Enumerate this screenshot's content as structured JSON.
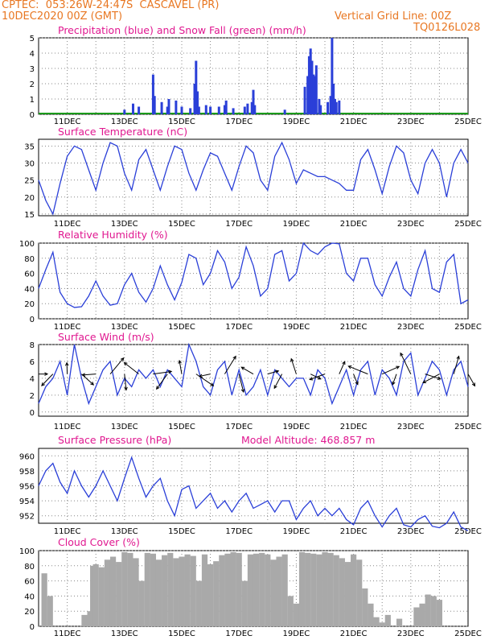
{
  "header": {
    "line1": "CPTEC:  053:26W-24:47S  CASCAVEL (PR)",
    "line2_left": "10DEC2020 00Z (GMT)",
    "line2_right": "Vertical Grid Line: 00Z",
    "line3_right": "TQ0126L028"
  },
  "colors": {
    "header": "#e87722",
    "title": "#e01890",
    "line": "#2a3fd8",
    "snow": "#1a9a1a",
    "cloud": "#a9a9a9"
  },
  "x_ticks": [
    "11DEC",
    "13DEC",
    "15DEC",
    "17DEC",
    "19DEC",
    "21DEC",
    "23DEC",
    "25DEC"
  ],
  "chart_data": [
    {
      "type": "bar",
      "title": "Precipitation (blue) and Snow Fall (green) (mm/h)",
      "ylim": [
        0,
        5
      ],
      "yticks": [
        0,
        1,
        2,
        3,
        4,
        5
      ],
      "x_unit": "days since 10DEC2020 00Z",
      "series": [
        {
          "name": "Precipitation",
          "x": [
            3.0,
            3.3,
            3.5,
            4.0,
            4.05,
            4.3,
            4.5,
            4.55,
            4.8,
            5.0,
            5.3,
            5.45,
            5.5,
            5.55,
            5.6,
            5.85,
            6.0,
            6.3,
            6.5,
            6.55,
            6.8,
            7.2,
            7.3,
            7.45,
            7.5,
            7.55,
            8.6,
            9.3,
            9.4,
            9.45,
            9.5,
            9.55,
            9.6,
            9.65,
            9.7,
            9.8,
            9.85,
            10.1,
            10.2,
            10.25,
            10.3,
            10.35,
            10.4,
            10.5
          ],
          "values": [
            0.3,
            0.7,
            0.5,
            2.6,
            1.2,
            0.8,
            0.5,
            1.0,
            0.9,
            0.5,
            0.4,
            2.0,
            3.5,
            1.5,
            0.5,
            0.6,
            0.5,
            0.5,
            0.6,
            0.9,
            0.4,
            0.5,
            0.7,
            0.8,
            1.6,
            0.6,
            0.3,
            1.8,
            2.5,
            3.8,
            4.3,
            3.5,
            2.6,
            2.5,
            3.2,
            1.0,
            0.6,
            0.8,
            1.2,
            5.0,
            2.0,
            1.0,
            0.8,
            0.9
          ]
        },
        {
          "name": "Snow Fall",
          "x": [],
          "values": []
        }
      ]
    },
    {
      "type": "line",
      "title": "Surface Temperature (nC)",
      "ylim": [
        14.5,
        37
      ],
      "yticks": [
        15,
        20,
        25,
        30,
        35
      ],
      "x": [
        0,
        0.25,
        0.5,
        0.75,
        1.0,
        1.25,
        1.5,
        1.75,
        2.0,
        2.25,
        2.5,
        2.75,
        3.0,
        3.25,
        3.5,
        3.75,
        4.0,
        4.25,
        4.5,
        4.75,
        5.0,
        5.25,
        5.5,
        5.75,
        6.0,
        6.25,
        6.5,
        6.75,
        7.0,
        7.25,
        7.5,
        7.75,
        8.0,
        8.25,
        8.5,
        8.75,
        9.0,
        9.25,
        9.5,
        9.75,
        10.0,
        10.25,
        10.5,
        10.75,
        11.0,
        11.25,
        11.5,
        11.75,
        12.0,
        12.25,
        12.5,
        12.75,
        13.0,
        13.25,
        13.5,
        13.75,
        14.0,
        14.25,
        14.5,
        14.75,
        15.0
      ],
      "values": [
        25,
        19,
        15,
        24,
        32,
        35,
        34,
        28,
        22,
        30,
        36,
        35,
        27,
        22,
        31,
        34,
        28,
        22,
        29,
        35,
        34,
        27,
        22,
        28,
        33,
        32,
        27,
        22,
        29,
        35,
        33,
        25,
        22,
        32,
        36,
        31,
        24,
        28,
        27,
        26,
        26,
        25,
        24,
        22,
        22,
        31,
        34,
        28,
        21,
        29,
        35,
        33,
        25,
        21,
        30,
        34,
        30,
        20,
        30,
        34,
        30
      ]
    },
    {
      "type": "line",
      "title": "Relative Humidity (%)",
      "ylim": [
        0,
        100
      ],
      "yticks": [
        0,
        20,
        40,
        60,
        80,
        100
      ],
      "x": [
        0,
        0.25,
        0.5,
        0.75,
        1.0,
        1.25,
        1.5,
        1.75,
        2.0,
        2.25,
        2.5,
        2.75,
        3.0,
        3.25,
        3.5,
        3.75,
        4.0,
        4.25,
        4.5,
        4.75,
        5.0,
        5.25,
        5.5,
        5.75,
        6.0,
        6.25,
        6.5,
        6.75,
        7.0,
        7.25,
        7.5,
        7.75,
        8.0,
        8.25,
        8.5,
        8.75,
        9.0,
        9.25,
        9.5,
        9.75,
        10.0,
        10.25,
        10.5,
        10.75,
        11.0,
        11.25,
        11.5,
        11.75,
        12.0,
        12.25,
        12.5,
        12.75,
        13.0,
        13.25,
        13.5,
        13.75,
        14.0,
        14.25,
        14.5,
        14.75,
        15.0
      ],
      "values": [
        40,
        65,
        88,
        35,
        20,
        15,
        16,
        30,
        50,
        30,
        18,
        20,
        45,
        60,
        35,
        22,
        40,
        70,
        45,
        25,
        48,
        85,
        80,
        45,
        60,
        90,
        75,
        40,
        55,
        95,
        70,
        30,
        40,
        85,
        90,
        50,
        60,
        100,
        90,
        85,
        95,
        100,
        99,
        60,
        50,
        80,
        80,
        45,
        30,
        55,
        75,
        40,
        30,
        65,
        90,
        40,
        35,
        75,
        85,
        20,
        25
      ]
    },
    {
      "type": "line",
      "title": "Surface Wind (m/s)",
      "ylim": [
        -0.5,
        8
      ],
      "yticks": [
        0,
        2,
        4,
        6,
        8
      ],
      "x": [
        0,
        0.25,
        0.5,
        0.75,
        1.0,
        1.25,
        1.5,
        1.75,
        2.0,
        2.25,
        2.5,
        2.75,
        3.0,
        3.25,
        3.5,
        3.75,
        4.0,
        4.25,
        4.5,
        4.75,
        5.0,
        5.25,
        5.5,
        5.75,
        6.0,
        6.25,
        6.5,
        6.75,
        7.0,
        7.25,
        7.5,
        7.75,
        8.0,
        8.25,
        8.5,
        8.75,
        9.0,
        9.25,
        9.5,
        9.75,
        10.0,
        10.25,
        10.5,
        10.75,
        11.0,
        11.25,
        11.5,
        11.75,
        12.0,
        12.25,
        12.5,
        12.75,
        13.0,
        13.25,
        13.5,
        13.75,
        14.0,
        14.25,
        14.5,
        14.75,
        15.0
      ],
      "values": [
        1,
        3,
        4,
        6,
        2,
        8,
        4,
        1,
        3,
        5,
        6,
        2,
        4,
        3,
        5,
        4,
        5,
        3,
        5,
        4,
        3,
        8,
        6,
        3,
        2,
        5,
        6,
        2,
        5,
        2,
        3,
        5,
        2,
        5,
        4,
        3,
        4,
        4,
        2,
        5,
        4,
        1,
        3,
        5,
        2,
        5,
        6,
        2,
        5,
        4,
        2,
        6,
        7,
        2,
        4,
        6,
        5,
        2,
        5,
        6,
        3
      ]
    },
    {
      "type": "line",
      "title": "Surface Pressure (hPa)",
      "subtitle": "Model Altitude: 468.857  m",
      "ylim": [
        951,
        961
      ],
      "yticks": [
        952,
        954,
        956,
        958,
        960
      ],
      "x": [
        0,
        0.25,
        0.5,
        0.75,
        1.0,
        1.25,
        1.5,
        1.75,
        2.0,
        2.25,
        2.5,
        2.75,
        3.0,
        3.25,
        3.5,
        3.75,
        4.0,
        4.25,
        4.5,
        4.75,
        5.0,
        5.25,
        5.5,
        5.75,
        6.0,
        6.25,
        6.5,
        6.75,
        7.0,
        7.25,
        7.5,
        7.75,
        8.0,
        8.25,
        8.5,
        8.75,
        9.0,
        9.25,
        9.5,
        9.75,
        10.0,
        10.25,
        10.5,
        10.75,
        11.0,
        11.25,
        11.5,
        11.75,
        12.0,
        12.25,
        12.5,
        12.75,
        13.0,
        13.25,
        13.5,
        13.75,
        14.0,
        14.25,
        14.5,
        14.75,
        15.0
      ],
      "values": [
        956,
        958,
        959,
        956.5,
        955,
        958,
        956,
        954.5,
        956,
        958,
        956,
        954,
        957,
        959.8,
        957,
        954.5,
        956,
        957,
        954,
        952,
        955.5,
        956,
        953,
        954,
        955,
        953,
        954,
        952.5,
        954,
        955,
        953,
        953.5,
        954,
        952.5,
        954,
        954,
        951.5,
        953,
        954,
        952,
        953,
        952,
        953,
        951.5,
        950.8,
        953,
        954,
        952,
        950.5,
        952,
        953,
        950.8,
        950.5,
        951.5,
        952,
        950.6,
        950.4,
        951,
        952.5,
        950.5,
        950
      ]
    },
    {
      "type": "bar",
      "title": "Cloud Cover (%)",
      "ylim": [
        0,
        100
      ],
      "yticks": [
        0,
        20,
        40,
        60,
        80,
        100
      ],
      "x": [
        0.2,
        0.4,
        1.6,
        1.8,
        1.9,
        2.0,
        2.2,
        2.4,
        2.6,
        2.8,
        3.0,
        3.2,
        3.4,
        3.6,
        3.8,
        4.0,
        4.2,
        4.4,
        4.6,
        4.8,
        5.0,
        5.2,
        5.4,
        5.6,
        5.8,
        6.0,
        6.2,
        6.4,
        6.6,
        6.8,
        7.0,
        7.2,
        7.4,
        7.6,
        7.8,
        8.0,
        8.2,
        8.4,
        8.6,
        8.8,
        9.0,
        9.2,
        9.4,
        9.6,
        9.8,
        10.0,
        10.2,
        10.4,
        10.6,
        10.8,
        11.0,
        11.2,
        11.4,
        11.6,
        11.8,
        12.0,
        12.2,
        12.6,
        13.2,
        13.4,
        13.6,
        13.8,
        14.0
      ],
      "values": [
        70,
        40,
        15,
        20,
        80,
        82,
        78,
        88,
        92,
        85,
        98,
        97,
        90,
        60,
        97,
        96,
        88,
        94,
        97,
        90,
        92,
        95,
        93,
        60,
        95,
        82,
        86,
        94,
        96,
        98,
        97,
        60,
        95,
        96,
        97,
        95,
        88,
        92,
        95,
        40,
        30,
        98,
        97,
        96,
        95,
        98,
        97,
        94,
        90,
        85,
        95,
        88,
        50,
        30,
        12,
        5,
        15,
        10,
        25,
        30,
        42,
        40,
        35
      ]
    }
  ]
}
